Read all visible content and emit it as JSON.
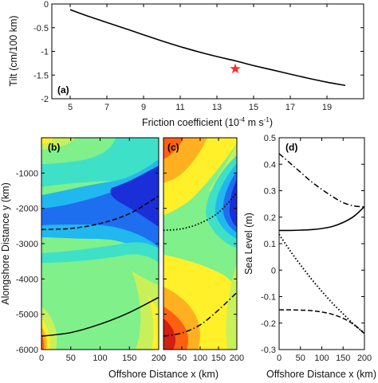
{
  "chart_data": [
    {
      "type": "line",
      "panel": "(a)",
      "xlabel": "Friction coefficient (10",
      "xlabel_exp": "-4",
      "xlabel_tail": " m s",
      "xlabel_exp2": "-1",
      "xlabel_close": ")",
      "ylabel": "Tilt (cm/100 km)",
      "xlim": [
        4,
        21
      ],
      "ylim": [
        -2,
        0
      ],
      "xticks": [
        "5",
        "7",
        "9",
        "11",
        "13",
        "15",
        "17",
        "19"
      ],
      "xtick_values": [
        5,
        7,
        9,
        11,
        13,
        15,
        17,
        19
      ],
      "yticks": [
        "0",
        "-0.5",
        "-1",
        "-1.5",
        "-2"
      ],
      "ytick_values": [
        0,
        -0.5,
        -1,
        -1.5,
        -2
      ],
      "series": [
        {
          "x": [
            5,
            6,
            7,
            8,
            9,
            10,
            11,
            12,
            13,
            14,
            15,
            16,
            17,
            18,
            19,
            20
          ],
          "y": [
            -0.12,
            -0.26,
            -0.39,
            -0.52,
            -0.65,
            -0.78,
            -0.9,
            -1.01,
            -1.11,
            -1.2,
            -1.3,
            -1.39,
            -1.48,
            -1.57,
            -1.65,
            -1.72
          ]
        }
      ],
      "marker": {
        "x": 14,
        "y": -1.37,
        "shape": "star",
        "color": "#ff2a2a"
      }
    },
    {
      "type": "heatmap",
      "panel": "(b)",
      "xlabel": "Offshore Distance x (km)",
      "ylabel": "Alongshore Distance y (km)",
      "xlim": [
        0,
        200
      ],
      "ylim": [
        -6000,
        0
      ],
      "xticks": [
        "0",
        "50",
        "100",
        "150",
        "200"
      ],
      "xtick_values": [
        0,
        50,
        100,
        150,
        200
      ],
      "yticks": [
        "-1000",
        "-2000",
        "-3000",
        "-4000",
        "-5000",
        "-6000"
      ],
      "ytick_values": [
        -1000,
        -2000,
        -3000,
        -4000,
        -5000,
        -6000
      ],
      "colormap": [
        "#1a2fd8",
        "#1e6ff0",
        "#21b8f0",
        "#3ee0c8",
        "#7ff08a",
        "#c8f05a",
        "#fff02a",
        "#ffb020",
        "#ff6010",
        "#d02010"
      ],
      "lines": [
        {
          "style": "dashed",
          "x": [
            0,
            50,
            100,
            150,
            200
          ],
          "y": [
            -2600,
            -2570,
            -2430,
            -2150,
            -1650
          ]
        },
        {
          "style": "solid",
          "x": [
            0,
            50,
            100,
            150,
            200
          ],
          "y": [
            -5620,
            -5520,
            -5280,
            -4950,
            -4520
          ]
        }
      ]
    },
    {
      "type": "heatmap",
      "panel": "(c)",
      "xlim": [
        0,
        200
      ],
      "ylim": [
        -6000,
        0
      ],
      "xticks": [
        "0",
        "50",
        "100",
        "150",
        "200"
      ],
      "xtick_values": [
        0,
        50,
        100,
        150,
        200
      ],
      "lines": [
        {
          "style": "dotted",
          "x": [
            0,
            50,
            100,
            150,
            200
          ],
          "y": [
            -2620,
            -2580,
            -2420,
            -2120,
            -1560
          ]
        },
        {
          "style": "dashdot",
          "x": [
            0,
            50,
            100,
            150,
            200
          ],
          "y": [
            -5620,
            -5530,
            -5300,
            -4880,
            -4380
          ]
        }
      ]
    },
    {
      "type": "line",
      "panel": "(d)",
      "xlabel": "Offshore Distance x (km)",
      "ylabel": "Sea Level (m)",
      "xlim": [
        0,
        200
      ],
      "ylim": [
        -0.3,
        0.5
      ],
      "xticks": [
        "0",
        "50",
        "100",
        "150",
        "200"
      ],
      "xtick_values": [
        0,
        50,
        100,
        150,
        200
      ],
      "yticks": [
        "0.5",
        "0.4",
        "0.3",
        "0.2",
        "0.1",
        "0",
        "-0.1",
        "-0.2",
        "-0.3"
      ],
      "ytick_values": [
        0.5,
        0.4,
        0.3,
        0.2,
        0.1,
        0,
        -0.1,
        -0.2,
        -0.3
      ],
      "series": [
        {
          "style": "solid",
          "x": [
            0,
            25,
            50,
            75,
            100,
            125,
            150,
            175,
            200
          ],
          "y": [
            0.15,
            0.15,
            0.151,
            0.153,
            0.157,
            0.165,
            0.18,
            0.203,
            0.24
          ]
        },
        {
          "style": "dashdot",
          "x": [
            0,
            25,
            50,
            75,
            100,
            125,
            150,
            175,
            200
          ],
          "y": [
            0.44,
            0.405,
            0.37,
            0.335,
            0.305,
            0.278,
            0.255,
            0.243,
            0.238
          ]
        },
        {
          "style": "dotted",
          "x": [
            0,
            25,
            50,
            75,
            100,
            125,
            150,
            175,
            200
          ],
          "y": [
            0.135,
            0.075,
            0.02,
            -0.032,
            -0.08,
            -0.125,
            -0.165,
            -0.205,
            -0.238
          ]
        },
        {
          "style": "dashed",
          "x": [
            0,
            25,
            50,
            75,
            100,
            125,
            150,
            175,
            200
          ],
          "y": [
            -0.15,
            -0.15,
            -0.151,
            -0.153,
            -0.158,
            -0.167,
            -0.182,
            -0.205,
            -0.24
          ]
        }
      ]
    }
  ]
}
